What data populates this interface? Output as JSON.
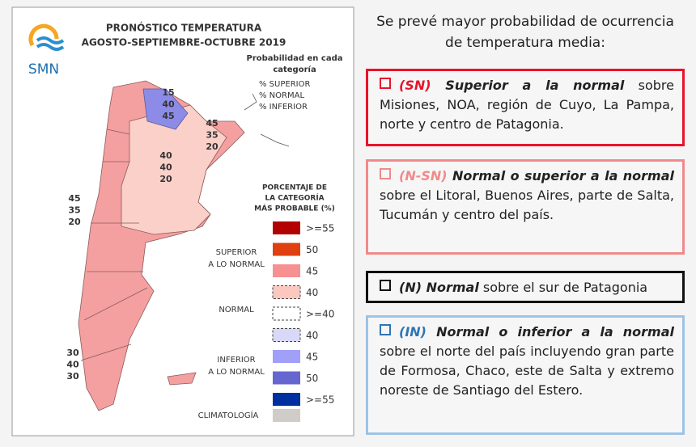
{
  "map": {
    "title": [
      "PRONÓSTICO TEMPERATURA",
      "AGOSTO-SEPTIEMBRE-OCTUBRE 2019"
    ],
    "logo": "SMN",
    "probability_header": [
      "Probabilidad en cada",
      "categoría"
    ],
    "probability_order": [
      "% SUPERIOR",
      "% NORMAL",
      "% INFERIOR"
    ],
    "annotations": [
      [
        "15",
        "40",
        "45"
      ],
      [
        "45",
        "35",
        "20"
      ],
      [
        "40",
        "40",
        "20"
      ],
      [
        "45",
        "35",
        "20"
      ],
      [
        "30",
        "40",
        "30"
      ]
    ],
    "legend_title": [
      "PORCENTAJE DE",
      "LA CATEGORÍA",
      "MÁS PROBABLE (%)"
    ],
    "legend_groups": [
      [
        "SUPERIOR",
        "A LO NORMAL"
      ],
      [
        "NORMAL"
      ],
      [
        "INFERIOR",
        "A LO NORMAL"
      ],
      [
        "CLIMATOLOGÍA"
      ]
    ],
    "legend_items": [
      ">=55",
      "50",
      "45",
      "40",
      ">=40",
      "40",
      "45",
      "50",
      ">=55"
    ]
  },
  "text": {
    "intro": "Se prevé mayor probabilidad de ocurrencia de temperatura media:",
    "boxes": [
      [
        "(SN)",
        " Superior a la normal",
        " sobre Misiones, NOA, región de Cuyo, La Pampa, norte y centro de Patagonia."
      ],
      [
        "(N-SN)",
        " Normal o superior a la normal",
        " sobre el Litoral, Buenos Aires, parte de Salta, Tucumán y centro del país."
      ],
      [
        "(N) Normal",
        " sobre el sur de Patagonia"
      ],
      [
        "(IN)",
        " Normal o inferior a la normal",
        " sobre el norte del país incluyendo gran parte de Formosa, Chaco, este de Salta y  extremo noreste de Santiago del Estero."
      ]
    ]
  }
}
